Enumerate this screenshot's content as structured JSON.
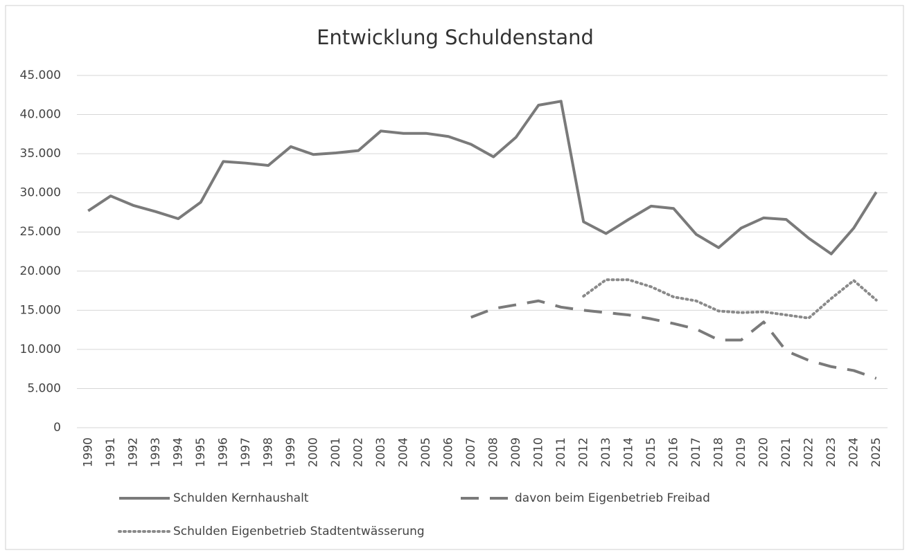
{
  "chart_data": {
    "type": "line",
    "title": "Entwicklung Schuldenstand",
    "categories": [
      "1990",
      "1991",
      "1992",
      "1993",
      "1994",
      "1995",
      "1996",
      "1997",
      "1998",
      "1999",
      "2000",
      "2001",
      "2002",
      "2003",
      "2004",
      "2005",
      "2006",
      "2007",
      "2008",
      "2009",
      "2010",
      "2011",
      "2012",
      "2013",
      "2014",
      "2015",
      "2016",
      "2017",
      "2018",
      "2019",
      "2020",
      "2021",
      "2022",
      "2023",
      "2024",
      "2025"
    ],
    "series": [
      {
        "name": "Schulden Kernhaushalt",
        "color": "#7a7a7a",
        "dash": "solid",
        "values": [
          27700,
          29600,
          28400,
          27600,
          26700,
          28800,
          34000,
          33800,
          33500,
          35900,
          34900,
          35100,
          35400,
          37900,
          37600,
          37600,
          37200,
          36200,
          34600,
          37100,
          41200,
          41700,
          26300,
          24800,
          26600,
          28300,
          28000,
          24700,
          23000,
          25500,
          26800,
          26600,
          24200,
          22200,
          25500,
          30100
        ]
      },
      {
        "name": "davon beim Eigenbetrieb Freibad",
        "color": "#7a7a7a",
        "dash": "dashed",
        "values": [
          null,
          null,
          null,
          null,
          null,
          null,
          null,
          null,
          null,
          null,
          null,
          null,
          null,
          null,
          null,
          null,
          null,
          14100,
          15200,
          15700,
          16200,
          15400,
          15000,
          14700,
          14400,
          13900,
          13300,
          12600,
          11200,
          11200,
          13500,
          9800,
          8600,
          7800,
          7300,
          6300
        ]
      },
      {
        "name": "Schulden Eigenbetrieb Stadtentwässerung",
        "color": "#8a8a8a",
        "dash": "dotted",
        "values": [
          null,
          null,
          null,
          null,
          null,
          null,
          null,
          null,
          null,
          null,
          null,
          null,
          null,
          null,
          null,
          null,
          null,
          null,
          null,
          null,
          null,
          null,
          16800,
          18900,
          18900,
          18000,
          16700,
          16200,
          14900,
          14700,
          14800,
          14400,
          14000,
          16500,
          18800,
          16300
        ]
      }
    ],
    "ylim": [
      0,
      45000
    ],
    "yticks": [
      0,
      {
        "value": 5000,
        "label": "5.000"
      },
      {
        "value": 10000,
        "label": "10.000"
      },
      {
        "value": 15000,
        "label": "15.000"
      },
      {
        "value": 20000,
        "label": "20.000"
      },
      {
        "value": 25000,
        "label": "25.000"
      },
      {
        "value": 30000,
        "label": "30.000"
      },
      {
        "value": 35000,
        "label": "35.000"
      },
      {
        "value": 40000,
        "label": "40.000"
      },
      {
        "value": 45000,
        "label": "45.000"
      }
    ],
    "grid": true,
    "legend": "bottom"
  }
}
